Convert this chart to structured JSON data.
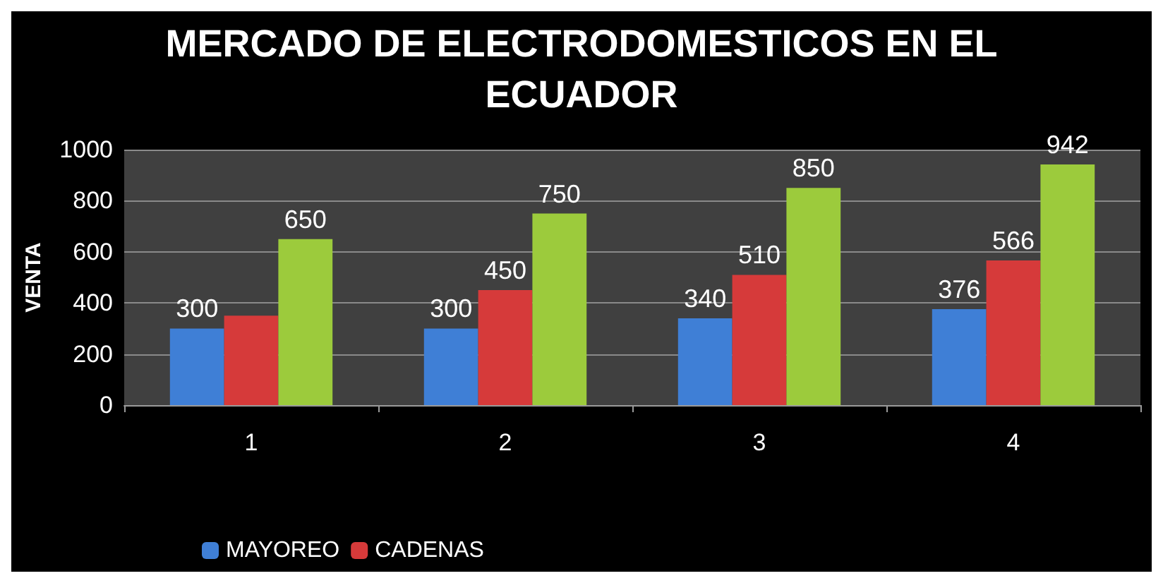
{
  "chart_data": {
    "type": "bar",
    "title": "MERCADO DE ELECTRODOMESTICOS EN EL\nECUADOR",
    "ylabel": "VENTA",
    "categories": [
      "1",
      "2",
      "3",
      "4"
    ],
    "series": [
      {
        "name": "MAYOREO",
        "color": "#3f7fd6",
        "values": [
          300,
          300,
          340,
          376
        ],
        "value_labels": [
          "300",
          "300",
          "340",
          "376"
        ]
      },
      {
        "name": "CADENAS",
        "color": "#d63a3a",
        "values": [
          350,
          450,
          510,
          566
        ],
        "value_labels": [
          null,
          "450",
          "510",
          "566"
        ]
      },
      {
        "color": "#9ccb3c",
        "values": [
          650,
          750,
          850,
          942
        ],
        "value_labels": [
          "650",
          "750",
          "850",
          "942"
        ]
      }
    ],
    "ylim": [
      0,
      1000
    ],
    "yticks": [
      0,
      200,
      400,
      600,
      800,
      1000
    ],
    "grid": "y",
    "legend": "bottom"
  }
}
